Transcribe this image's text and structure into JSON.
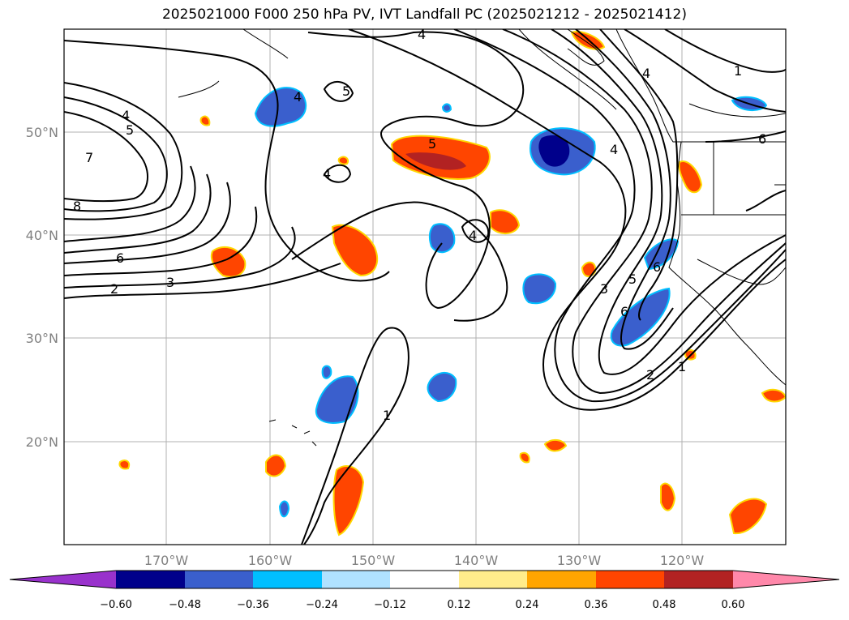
{
  "title": "2025021000 F000 250 hPa PV, IVT Landfall PC (2025021212 - 2025021412)",
  "latitude_labels": [
    "50°N",
    "40°N",
    "30°N",
    "20°N"
  ],
  "longitude_labels": [
    "170°W",
    "160°W",
    "150°W",
    "140°W",
    "130°W",
    "120°W"
  ],
  "colorbar": {
    "ticks": [
      "−0.60",
      "−0.48",
      "−0.36",
      "−0.24",
      "−0.12",
      "0.12",
      "0.24",
      "0.36",
      "0.48",
      "0.60"
    ],
    "colors": [
      "#9932cc",
      "#00008b",
      "#3a5fcd",
      "#00bfff",
      "#b0e2ff",
      "#ffffff",
      "#ffec8b",
      "#ffa500",
      "#ff4500",
      "#b22222",
      "#ff88aa"
    ]
  },
  "contour_labels": {
    "c1": "1",
    "c2": "2",
    "c3": "3",
    "c4": "4",
    "c5": "5",
    "c6": "6",
    "c7": "7",
    "c8": "8"
  }
}
